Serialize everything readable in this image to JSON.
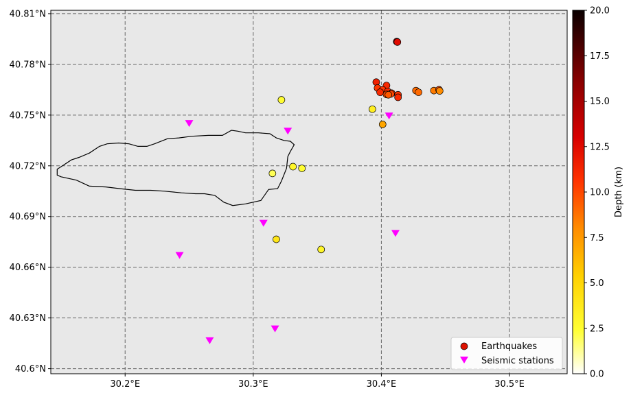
{
  "chart_data": {
    "type": "scatter",
    "title": "",
    "xlabel": "",
    "ylabel": "",
    "xlim": [
      30.142,
      30.545
    ],
    "ylim": [
      40.597,
      40.812
    ],
    "x_ticks": [
      {
        "value": 30.2,
        "label": "30.2°E"
      },
      {
        "value": 30.3,
        "label": "30.3°E"
      },
      {
        "value": 30.4,
        "label": "30.4°E"
      },
      {
        "value": 30.5,
        "label": "30.5°E"
      }
    ],
    "y_ticks": [
      {
        "value": 40.6,
        "label": "40.6°N"
      },
      {
        "value": 40.63,
        "label": "40.63°N"
      },
      {
        "value": 40.66,
        "label": "40.66°N"
      },
      {
        "value": 40.69,
        "label": "40.69°N"
      },
      {
        "value": 40.72,
        "label": "40.72°N"
      },
      {
        "value": 40.75,
        "label": "40.75°N"
      },
      {
        "value": 40.78,
        "label": "40.78°N"
      },
      {
        "value": 40.81,
        "label": "40.81°N"
      }
    ],
    "grid": true,
    "grid_style": "dashed",
    "background_color": "#e8e8e8",
    "legend": {
      "position": "lower-right",
      "entries": [
        {
          "label": "Earthquakes",
          "marker": "circle",
          "color": "#dd1100"
        },
        {
          "label": "Seismic stations",
          "marker": "triangle-down",
          "color": "#ff00ff"
        }
      ]
    },
    "colorbar": {
      "label": "Depth (km)",
      "min": 0,
      "max": 20,
      "ticks": [
        "0.0",
        "2.5",
        "5.0",
        "7.5",
        "10.0",
        "12.5",
        "15.0",
        "17.5",
        "20.0"
      ],
      "colormap": "hot_r"
    },
    "series": [
      {
        "name": "Earthquakes",
        "marker": "circle",
        "points": [
          {
            "lon": 30.412,
            "lat": 40.7935,
            "depth": 13.5
          },
          {
            "lon": 30.4125,
            "lat": 40.7932,
            "depth": 12.5
          },
          {
            "lon": 30.396,
            "lat": 40.7695,
            "depth": 11.5
          },
          {
            "lon": 30.404,
            "lat": 40.7675,
            "depth": 11.0
          },
          {
            "lon": 30.397,
            "lat": 40.766,
            "depth": 10.5
          },
          {
            "lon": 30.401,
            "lat": 40.765,
            "depth": 10.5
          },
          {
            "lon": 30.405,
            "lat": 40.764,
            "depth": 11.0
          },
          {
            "lon": 30.399,
            "lat": 40.7635,
            "depth": 11.0
          },
          {
            "lon": 30.408,
            "lat": 40.763,
            "depth": 10.5
          },
          {
            "lon": 30.4075,
            "lat": 40.7625,
            "depth": 10.0
          },
          {
            "lon": 30.404,
            "lat": 40.7622,
            "depth": 10.0
          },
          {
            "lon": 30.413,
            "lat": 40.762,
            "depth": 10.5
          },
          {
            "lon": 30.4055,
            "lat": 40.762,
            "depth": 9.5
          },
          {
            "lon": 30.413,
            "lat": 40.7605,
            "depth": 11.0
          },
          {
            "lon": 30.427,
            "lat": 40.7645,
            "depth": 9.0
          },
          {
            "lon": 30.429,
            "lat": 40.7635,
            "depth": 9.0
          },
          {
            "lon": 30.441,
            "lat": 40.7645,
            "depth": 8.5
          },
          {
            "lon": 30.445,
            "lat": 40.765,
            "depth": 10.0
          },
          {
            "lon": 30.4455,
            "lat": 40.7643,
            "depth": 8.0
          },
          {
            "lon": 30.393,
            "lat": 40.7535,
            "depth": 3.5
          },
          {
            "lon": 30.401,
            "lat": 40.7445,
            "depth": 7.0
          },
          {
            "lon": 30.322,
            "lat": 40.759,
            "depth": 2.5
          },
          {
            "lon": 30.315,
            "lat": 40.7155,
            "depth": 2.0
          },
          {
            "lon": 30.331,
            "lat": 40.7195,
            "depth": 3.0
          },
          {
            "lon": 30.338,
            "lat": 40.7185,
            "depth": 2.5
          },
          {
            "lon": 30.318,
            "lat": 40.6765,
            "depth": 4.0
          },
          {
            "lon": 30.353,
            "lat": 40.6705,
            "depth": 3.0
          }
        ]
      },
      {
        "name": "Seismic stations",
        "marker": "triangle-down",
        "color": "#ff00ff",
        "points": [
          {
            "lon": 30.25,
            "lat": 40.745
          },
          {
            "lon": 30.327,
            "lat": 40.7405
          },
          {
            "lon": 30.406,
            "lat": 40.7495
          },
          {
            "lon": 30.308,
            "lat": 40.686
          },
          {
            "lon": 30.411,
            "lat": 40.68
          },
          {
            "lon": 30.2425,
            "lat": 40.667
          },
          {
            "lon": 30.317,
            "lat": 40.6235
          },
          {
            "lon": 30.266,
            "lat": 40.6165
          }
        ]
      }
    ],
    "outline_polygon": [
      [
        30.147,
        40.718
      ],
      [
        30.152,
        40.7205
      ],
      [
        30.158,
        40.7235
      ],
      [
        30.164,
        40.725
      ],
      [
        30.172,
        40.7275
      ],
      [
        30.18,
        40.7315
      ],
      [
        30.186,
        40.733
      ],
      [
        30.195,
        40.7335
      ],
      [
        30.203,
        40.733
      ],
      [
        30.21,
        40.7315
      ],
      [
        30.217,
        40.7315
      ],
      [
        30.223,
        40.733
      ],
      [
        30.233,
        40.736
      ],
      [
        30.242,
        40.7365
      ],
      [
        30.252,
        40.7375
      ],
      [
        30.265,
        40.738
      ],
      [
        30.276,
        40.738
      ],
      [
        30.283,
        40.741
      ],
      [
        30.288,
        40.7405
      ],
      [
        30.294,
        40.7395
      ],
      [
        30.304,
        40.7395
      ],
      [
        30.313,
        40.739
      ],
      [
        30.318,
        40.7365
      ],
      [
        30.324,
        40.735
      ],
      [
        30.329,
        40.7345
      ],
      [
        30.332,
        40.7325
      ],
      [
        30.329,
        40.7285
      ],
      [
        30.327,
        40.7255
      ],
      [
        30.326,
        40.7185
      ],
      [
        30.322,
        40.711
      ],
      [
        30.319,
        40.7065
      ],
      [
        30.312,
        40.706
      ],
      [
        30.306,
        40.6995
      ],
      [
        30.294,
        40.6975
      ],
      [
        30.284,
        40.6965
      ],
      [
        30.277,
        40.6985
      ],
      [
        30.27,
        40.7025
      ],
      [
        30.262,
        40.7035
      ],
      [
        30.255,
        40.7035
      ],
      [
        30.244,
        40.704
      ],
      [
        30.231,
        40.705
      ],
      [
        30.22,
        40.7055
      ],
      [
        30.208,
        40.7055
      ],
      [
        30.196,
        40.7065
      ],
      [
        30.185,
        40.7075
      ],
      [
        30.172,
        40.708
      ],
      [
        30.162,
        40.7115
      ],
      [
        30.15,
        40.7135
      ],
      [
        30.147,
        40.7145
      ]
    ]
  }
}
